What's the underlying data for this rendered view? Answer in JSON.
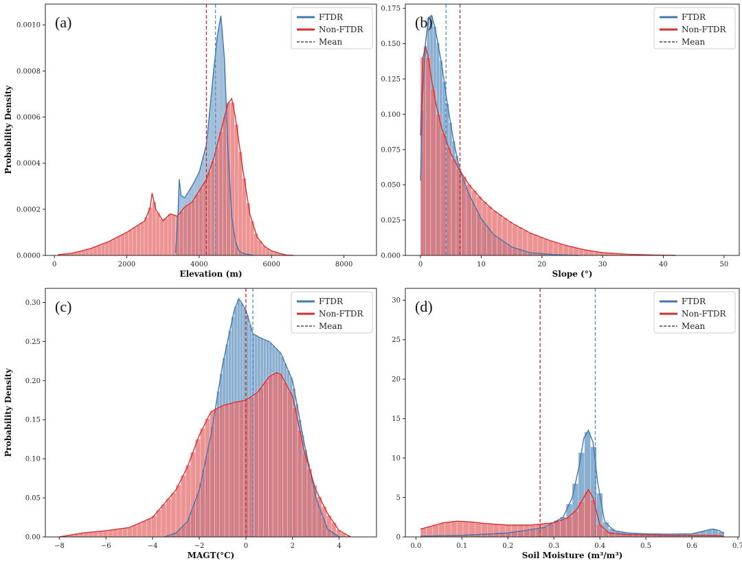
{
  "colors": {
    "ftdr": "#3f78ad",
    "ftdr_fill": "#7ea6cc",
    "non_ftdr": "#d62f2f",
    "non_ftdr_fill": "#e86a6a",
    "overlap_fill": "#b24a5e"
  },
  "legend": {
    "ftdr": "FTDR",
    "non_ftdr": "Non-FTDR",
    "mean": "Mean"
  },
  "chart_data": [
    {
      "panel": "(a)",
      "type": "area",
      "xlabel": "Elevation (m)",
      "ylabel": "Probability Density",
      "xlim": [
        -250,
        8900
      ],
      "ylim": [
        0,
        0.00109
      ],
      "xticks": [
        0,
        2000,
        4000,
        6000,
        8000
      ],
      "xtick_labels": [
        "0",
        "2000",
        "4000",
        "6000",
        "8000"
      ],
      "yticks": [
        0,
        0.0002,
        0.0004,
        0.0006,
        0.0008,
        0.001
      ],
      "ytick_labels": [
        "0.0000",
        "0.0002",
        "0.0004",
        "0.0006",
        "0.0008",
        "0.0010"
      ],
      "legend_position": "top-right",
      "hist_bins": 60,
      "series": [
        {
          "name": "FTDR",
          "mean": 4450,
          "x": [
            3350,
            3420,
            3450,
            3500,
            3600,
            3800,
            4000,
            4200,
            4400,
            4500,
            4600,
            4700,
            4800,
            4900,
            5000,
            5100,
            5200,
            5400,
            5500
          ],
          "y": [
            1e-05,
            0.0002,
            0.00033,
            0.00026,
            0.00025,
            0.0003,
            0.00036,
            0.00048,
            0.0008,
            0.00095,
            0.00104,
            0.00085,
            0.00045,
            0.00017,
            6e-05,
            2e-05,
            1e-05,
            3e-06,
            0
          ]
        },
        {
          "name": "Non-FTDR",
          "mean": 4200,
          "x": [
            100,
            500,
            1000,
            1500,
            2000,
            2500,
            2650,
            2700,
            2800,
            3000,
            3200,
            3400,
            3600,
            3800,
            4000,
            4200,
            4400,
            4600,
            4800,
            4900,
            5000,
            5200,
            5400,
            5600,
            5800,
            6000,
            6200,
            6400,
            6600
          ],
          "y": [
            3e-06,
            1e-05,
            3e-05,
            6e-05,
            0.0001,
            0.00015,
            0.00021,
            0.00027,
            0.0002,
            0.00015,
            0.00018,
            0.00017,
            0.00021,
            0.00023,
            0.00028,
            0.00033,
            0.00042,
            0.00054,
            0.00066,
            0.00068,
            0.0006,
            0.00038,
            0.00018,
            8e-05,
            4e-05,
            2e-05,
            1e-05,
            2e-06,
            0
          ]
        }
      ]
    },
    {
      "panel": "(b)",
      "type": "area",
      "xlabel": "Slope (°)",
      "ylabel": "",
      "xlim": [
        -2.5,
        52.5
      ],
      "ylim": [
        0,
        0.178
      ],
      "xticks": [
        0,
        10,
        20,
        30,
        40,
        50
      ],
      "xtick_labels": [
        "0",
        "10",
        "20",
        "30",
        "40",
        "50"
      ],
      "yticks": [
        0,
        0.025,
        0.05,
        0.075,
        0.1,
        0.125,
        0.15,
        0.175
      ],
      "ytick_labels": [
        "0.000",
        "0.025",
        "0.050",
        "0.075",
        "0.100",
        "0.125",
        "0.150",
        "0.175"
      ],
      "legend_position": "top-right",
      "hist_bins": 50,
      "series": [
        {
          "name": "FTDR",
          "mean": 4.2,
          "x": [
            0,
            0.3,
            0.8,
            1.3,
            1.8,
            2.3,
            2.8,
            3.5,
            4.5,
            5.5,
            6.5,
            8,
            10,
            12,
            15,
            18,
            22,
            26
          ],
          "y": [
            0.053,
            0.11,
            0.15,
            0.168,
            0.17,
            0.163,
            0.152,
            0.135,
            0.105,
            0.08,
            0.06,
            0.043,
            0.026,
            0.015,
            0.006,
            0.002,
            0.0005,
            0
          ]
        },
        {
          "name": "Non-FTDR",
          "mean": 6.5,
          "x": [
            0,
            0.4,
            0.8,
            1.2,
            1.8,
            2.5,
            3.5,
            5,
            6.5,
            8,
            10,
            12,
            15,
            18,
            21,
            24,
            27,
            30,
            34,
            38,
            42
          ],
          "y": [
            0.085,
            0.14,
            0.148,
            0.142,
            0.125,
            0.108,
            0.09,
            0.072,
            0.06,
            0.05,
            0.04,
            0.032,
            0.023,
            0.016,
            0.011,
            0.007,
            0.004,
            0.002,
            0.0008,
            0.0003,
            0
          ]
        }
      ]
    },
    {
      "panel": "(c)",
      "type": "area",
      "xlabel": "MAGT(°C)",
      "ylabel": "Probability Density",
      "xlim": [
        -8.6,
        5.6
      ],
      "ylim": [
        0,
        0.318
      ],
      "xticks": [
        -8,
        -6,
        -4,
        -2,
        0,
        2,
        4
      ],
      "xtick_labels": [
        "−8",
        "−6",
        "−4",
        "−2",
        "0",
        "2",
        "4"
      ],
      "yticks": [
        0,
        0.05,
        0.1,
        0.15,
        0.2,
        0.25,
        0.3
      ],
      "ytick_labels": [
        "0.00",
        "0.05",
        "0.10",
        "0.15",
        "0.20",
        "0.25",
        "0.30"
      ],
      "legend_position": "top-right",
      "hist_bins": 60,
      "series": [
        {
          "name": "FTDR",
          "mean": 0.3,
          "x": [
            -3.5,
            -3,
            -2.5,
            -2,
            -1.5,
            -1,
            -0.5,
            -0.3,
            0,
            0.3,
            0.6,
            1,
            1.5,
            2,
            2.5,
            3,
            3.5,
            4
          ],
          "y": [
            0,
            0.005,
            0.02,
            0.06,
            0.13,
            0.22,
            0.29,
            0.305,
            0.29,
            0.26,
            0.255,
            0.25,
            0.235,
            0.2,
            0.12,
            0.05,
            0.01,
            0
          ]
        },
        {
          "name": "Non-FTDR",
          "mean": 0.0,
          "x": [
            -8,
            -7,
            -6,
            -5,
            -4,
            -3,
            -2.5,
            -2,
            -1.5,
            -1,
            -0.5,
            0,
            0.5,
            1,
            1.3,
            1.5,
            2,
            2.5,
            3,
            3.5,
            4,
            4.5
          ],
          "y": [
            0,
            0.005,
            0.008,
            0.012,
            0.025,
            0.06,
            0.09,
            0.13,
            0.16,
            0.168,
            0.172,
            0.175,
            0.185,
            0.205,
            0.21,
            0.208,
            0.18,
            0.11,
            0.06,
            0.03,
            0.008,
            0
          ]
        }
      ]
    },
    {
      "panel": "(d)",
      "type": "area",
      "xlabel": "Soil Moisture (m³/m³)",
      "ylabel": "",
      "xlim": [
        -0.023,
        0.703
      ],
      "ylim": [
        0,
        31.5
      ],
      "xticks": [
        0,
        0.1,
        0.2,
        0.3,
        0.4,
        0.5,
        0.6,
        0.7
      ],
      "xtick_labels": [
        "0.0",
        "0.1",
        "0.2",
        "0.3",
        "0.4",
        "0.5",
        "0.6",
        "0.7"
      ],
      "yticks": [
        0,
        5,
        10,
        15,
        20,
        25,
        30
      ],
      "ytick_labels": [
        "0",
        "5",
        "10",
        "15",
        "20",
        "25",
        "30"
      ],
      "legend_position": "top-right",
      "hist_bins": 50,
      "series": [
        {
          "name": "FTDR",
          "mean": 0.39,
          "x": [
            0.01,
            0.1,
            0.2,
            0.28,
            0.32,
            0.34,
            0.355,
            0.365,
            0.375,
            0.385,
            0.395,
            0.41,
            0.43,
            0.46,
            0.5,
            0.55,
            0.6,
            0.63,
            0.645,
            0.66,
            0.67
          ],
          "y": [
            0.1,
            0.2,
            0.5,
            1.2,
            2.5,
            5,
            9,
            12.5,
            13.5,
            12,
            7,
            2,
            0.8,
            0.5,
            0.4,
            0.35,
            0.4,
            0.8,
            1.0,
            0.8,
            0.4
          ]
        },
        {
          "name": "Non-FTDR",
          "mean": 0.27,
          "x": [
            0.01,
            0.03,
            0.06,
            0.09,
            0.12,
            0.15,
            0.2,
            0.25,
            0.3,
            0.33,
            0.35,
            0.365,
            0.375,
            0.385,
            0.4,
            0.42,
            0.46,
            0.55,
            0.65,
            0.67
          ],
          "y": [
            1.0,
            1.3,
            1.8,
            2.0,
            1.9,
            1.7,
            1.5,
            1.5,
            1.8,
            2.4,
            3.5,
            5.0,
            6.0,
            5.0,
            1.5,
            0.5,
            0.3,
            0.2,
            0.2,
            0.1
          ]
        }
      ]
    }
  ]
}
